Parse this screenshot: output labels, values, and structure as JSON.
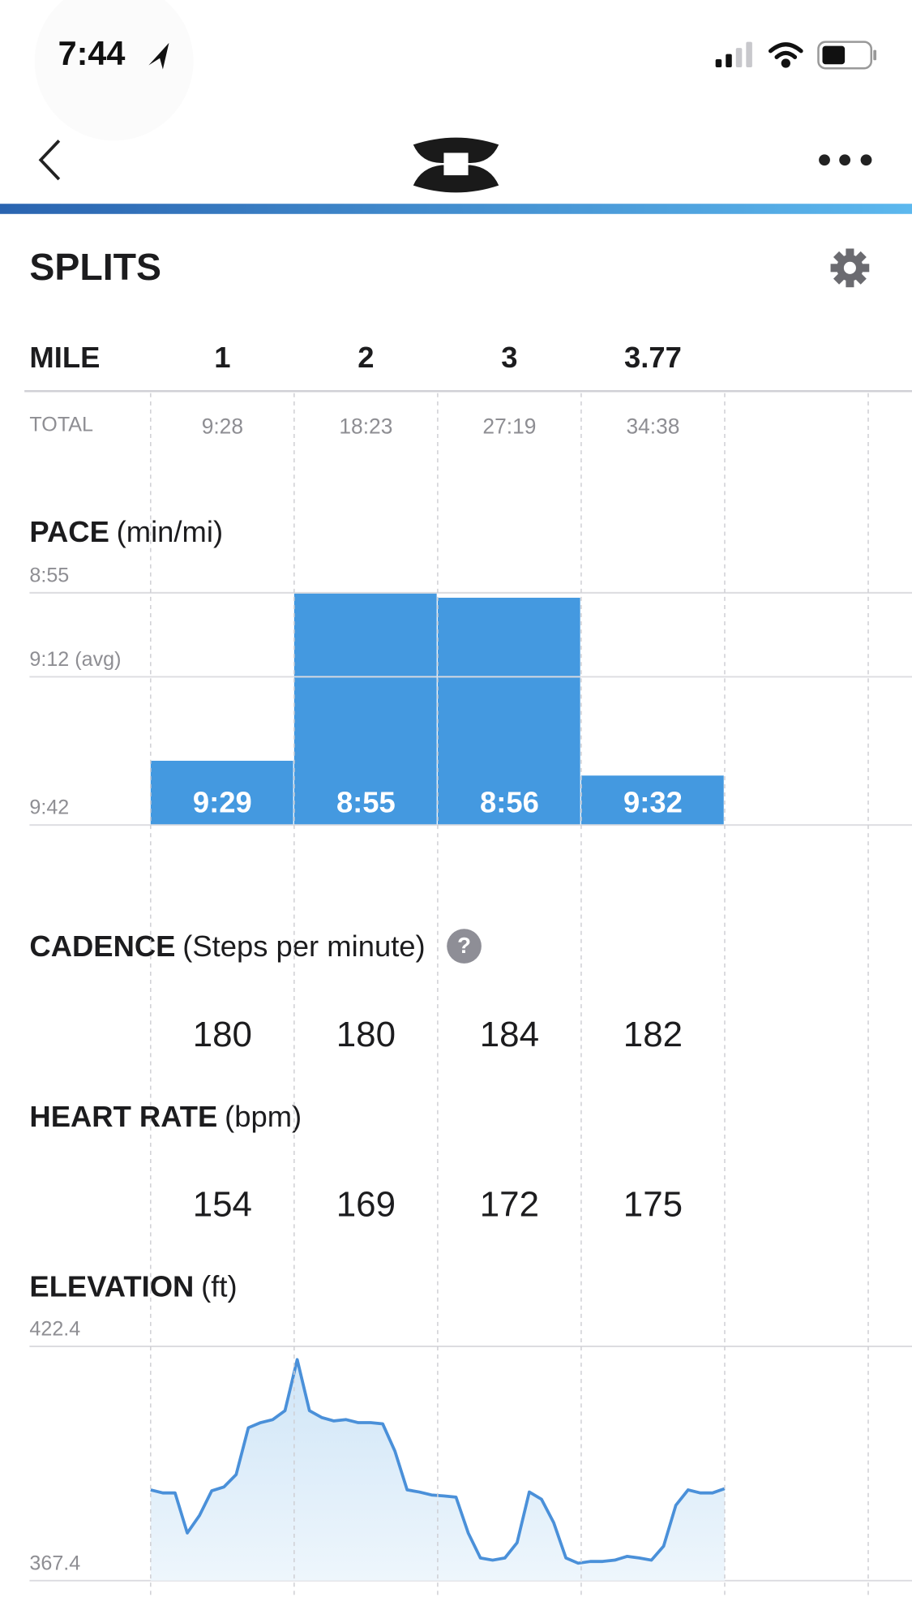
{
  "status_bar": {
    "time": "7:44"
  },
  "section_title": "SPLITS",
  "splits": {
    "header": "MILE",
    "miles": [
      1,
      2,
      3,
      3.77
    ],
    "total_label": "TOTAL",
    "totals": [
      "9:28",
      "18:23",
      "27:19",
      "34:38"
    ]
  },
  "cadence": {
    "title": "CADENCE",
    "unit": "(Steps per minute)",
    "values": [
      180,
      180,
      184,
      182
    ]
  },
  "heart_rate": {
    "title": "HEART RATE",
    "unit": "(bpm)",
    "values": [
      154,
      169,
      172,
      175
    ]
  },
  "chart_data": [
    {
      "type": "bar",
      "title": "PACE",
      "unit": "(min/mi)",
      "values": [
        569,
        535,
        536,
        572
      ],
      "value_labels": [
        "9:29",
        "8:55",
        "8:56",
        "9:32"
      ],
      "color": "#4499e0",
      "ylim": [
        582,
        535
      ],
      "yticks": [
        {
          "value": 535,
          "label": "8:55"
        },
        {
          "value": 552,
          "label": "9:12 (avg)"
        },
        {
          "value": 582,
          "label": "9:42"
        }
      ],
      "grid": true
    },
    {
      "type": "area",
      "title": "ELEVATION",
      "unit": "(ft)",
      "values": [
        388.7,
        388.0,
        388.0,
        378.6,
        382.7,
        388.5,
        389.4,
        392.3,
        403.3,
        404.5,
        405.2,
        407.3,
        419.3,
        407.3,
        405.7,
        404.9,
        405.2,
        404.5,
        404.5,
        404.2,
        397.8,
        388.7,
        388.2,
        387.5,
        387.3,
        387.0,
        378.6,
        372.7,
        372.2,
        372.7,
        376.3,
        388.2,
        386.5,
        381.0,
        372.7,
        371.5,
        371.9,
        371.9,
        372.2,
        373.1,
        372.7,
        372.2,
        375.5,
        385.1,
        388.7,
        388.0,
        388.0,
        389.0
      ],
      "color": "#4a90d9",
      "ylim": [
        367.4,
        422.4
      ],
      "yticks": [
        367.4,
        422.4
      ],
      "grid": true
    }
  ]
}
